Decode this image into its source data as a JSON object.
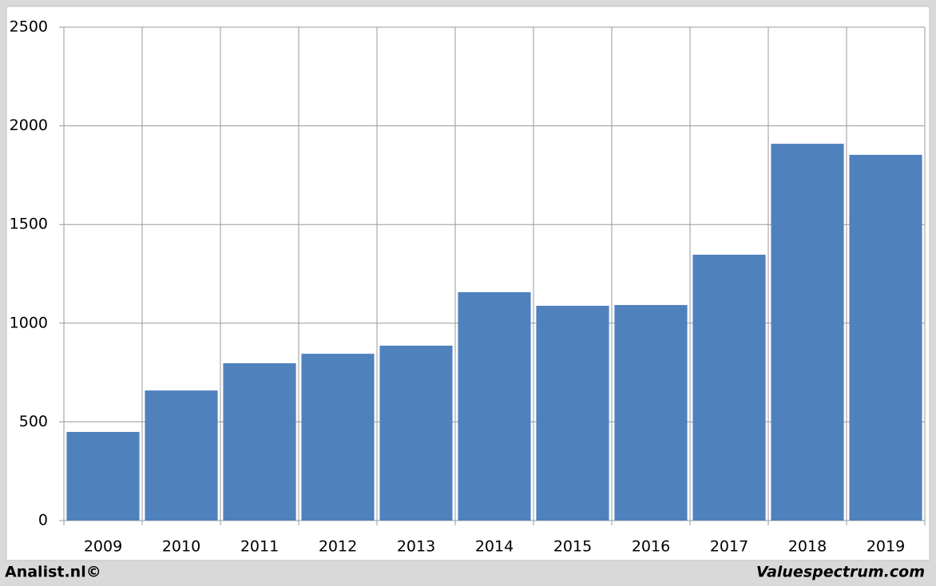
{
  "chart_data": {
    "type": "bar",
    "categories": [
      "2009",
      "2010",
      "2011",
      "2012",
      "2013",
      "2014",
      "2015",
      "2016",
      "2017",
      "2018",
      "2019"
    ],
    "values": [
      449,
      659,
      797,
      845,
      886,
      1157,
      1088,
      1092,
      1347,
      1909,
      1853
    ],
    "color": "#4f81bd",
    "ylim": [
      0,
      2500
    ],
    "yticks": [
      0,
      500,
      1000,
      1500,
      2000,
      2500
    ],
    "grid": true,
    "annotations": [
      "Analist.nl©",
      "Valuespectrum.com"
    ]
  }
}
